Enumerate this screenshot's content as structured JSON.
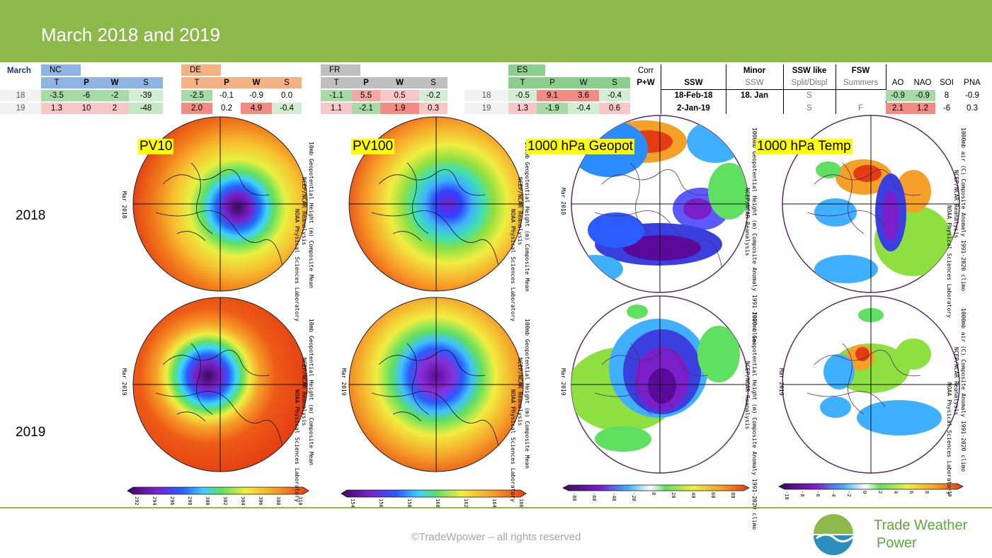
{
  "header": {
    "title": "March 2018 and 2019"
  },
  "table": {
    "month_label": "March",
    "regions": [
      {
        "name": "NC",
        "cols": [
          "T",
          "P",
          "W",
          "S"
        ],
        "rows": [
          [
            "-3.5",
            "-6",
            "-2",
            "-39"
          ],
          [
            "1.3",
            "10",
            "2",
            "-48"
          ]
        ]
      },
      {
        "name": "DE",
        "cols": [
          "T",
          "P",
          "W",
          "S"
        ],
        "rows": [
          [
            "-2.5",
            "-0.1",
            "-0.9",
            "0.0"
          ],
          [
            "2.0",
            "0.2",
            "4.9",
            "-0.4"
          ]
        ]
      },
      {
        "name": "FR",
        "cols": [
          "T",
          "P",
          "W",
          "S"
        ],
        "rows": [
          [
            "-1.1",
            "5.5",
            "0.5",
            "-0.2"
          ],
          [
            "1.1",
            "-2.1",
            "1.9",
            "0.3"
          ]
        ]
      },
      {
        "name": "ES",
        "cols": [
          "T",
          "P",
          "W",
          "S"
        ],
        "rows": [
          [
            "-0.5",
            "9.1",
            "3.6",
            "-0.4"
          ],
          [
            "1.3",
            "-1.9",
            "-0.4",
            "0.6"
          ]
        ]
      }
    ],
    "years": [
      "18",
      "19"
    ],
    "corr_label": "Corr",
    "pw_label": "P+W",
    "ssw": {
      "headers": [
        "SSW",
        "Minor",
        "SSW like",
        "FSW"
      ],
      "subheaders": [
        "SSW",
        "Split/Displ",
        "Summers"
      ],
      "rows": [
        {
          "ssw": "18-Feb-18",
          "minor": "18. Jan",
          "like": "S",
          "fsw": ""
        },
        {
          "ssw": "2-Jan-19",
          "minor": "",
          "like": "S",
          "fsw": "F"
        }
      ]
    },
    "indices": {
      "headers": [
        "AO",
        "NAO",
        "SOI",
        "PNA"
      ],
      "rows": [
        [
          "-0.9",
          "-0.9",
          "8",
          "-0.9"
        ],
        [
          "2.1",
          "1.2",
          "-6",
          "0.3"
        ]
      ]
    }
  },
  "maps": {
    "year_labels": [
      "2018",
      "2019"
    ],
    "panel_labels": [
      "PV10",
      "PV100",
      "1000 hPa Geopot",
      "1000 hPa Temp"
    ],
    "side_text": {
      "pv10": "10mb Geopotential Height (m) Composite Mean",
      "pv100": "100mb Geopotential Height (m) Composite Mean",
      "geo": "1000mb Geopotential Height (m) Composite Anomaly 1991-2020 climo",
      "temp": "1000mb air (C) Composite Anomaly 1991-2020 climo",
      "source": "NCEP/NCAR Reanalysis",
      "lab": "NOAA Physical Sciences Laboratory",
      "mar18": "Mar 2018",
      "mar19": "Mar 2019"
    },
    "colorbars": [
      {
        "ticks": [
          "292",
          "294",
          "296",
          "298",
          "300",
          "302",
          "304",
          "306",
          "308",
          "310"
        ]
      },
      {
        "ticks": [
          "154",
          "156",
          "158",
          "160",
          "162",
          "164",
          "166"
        ]
      },
      {
        "ticks": [
          "-80",
          "-60",
          "-40",
          "-20",
          "0",
          "20",
          "40",
          "60",
          "80"
        ]
      },
      {
        "ticks": [
          "-10",
          "-8",
          "-6",
          "-4",
          "-2",
          "0",
          "2",
          "4",
          "6",
          "8",
          "10"
        ]
      }
    ]
  },
  "footer": {
    "copyright": "©TradeWpower – all rights reserved",
    "logo_line1": "Trade Weather",
    "logo_line2": "Power"
  },
  "colors": {
    "header_green": "#8db84a",
    "logo_green": "#5aab3a",
    "logo_blue": "#2a8fbf"
  }
}
